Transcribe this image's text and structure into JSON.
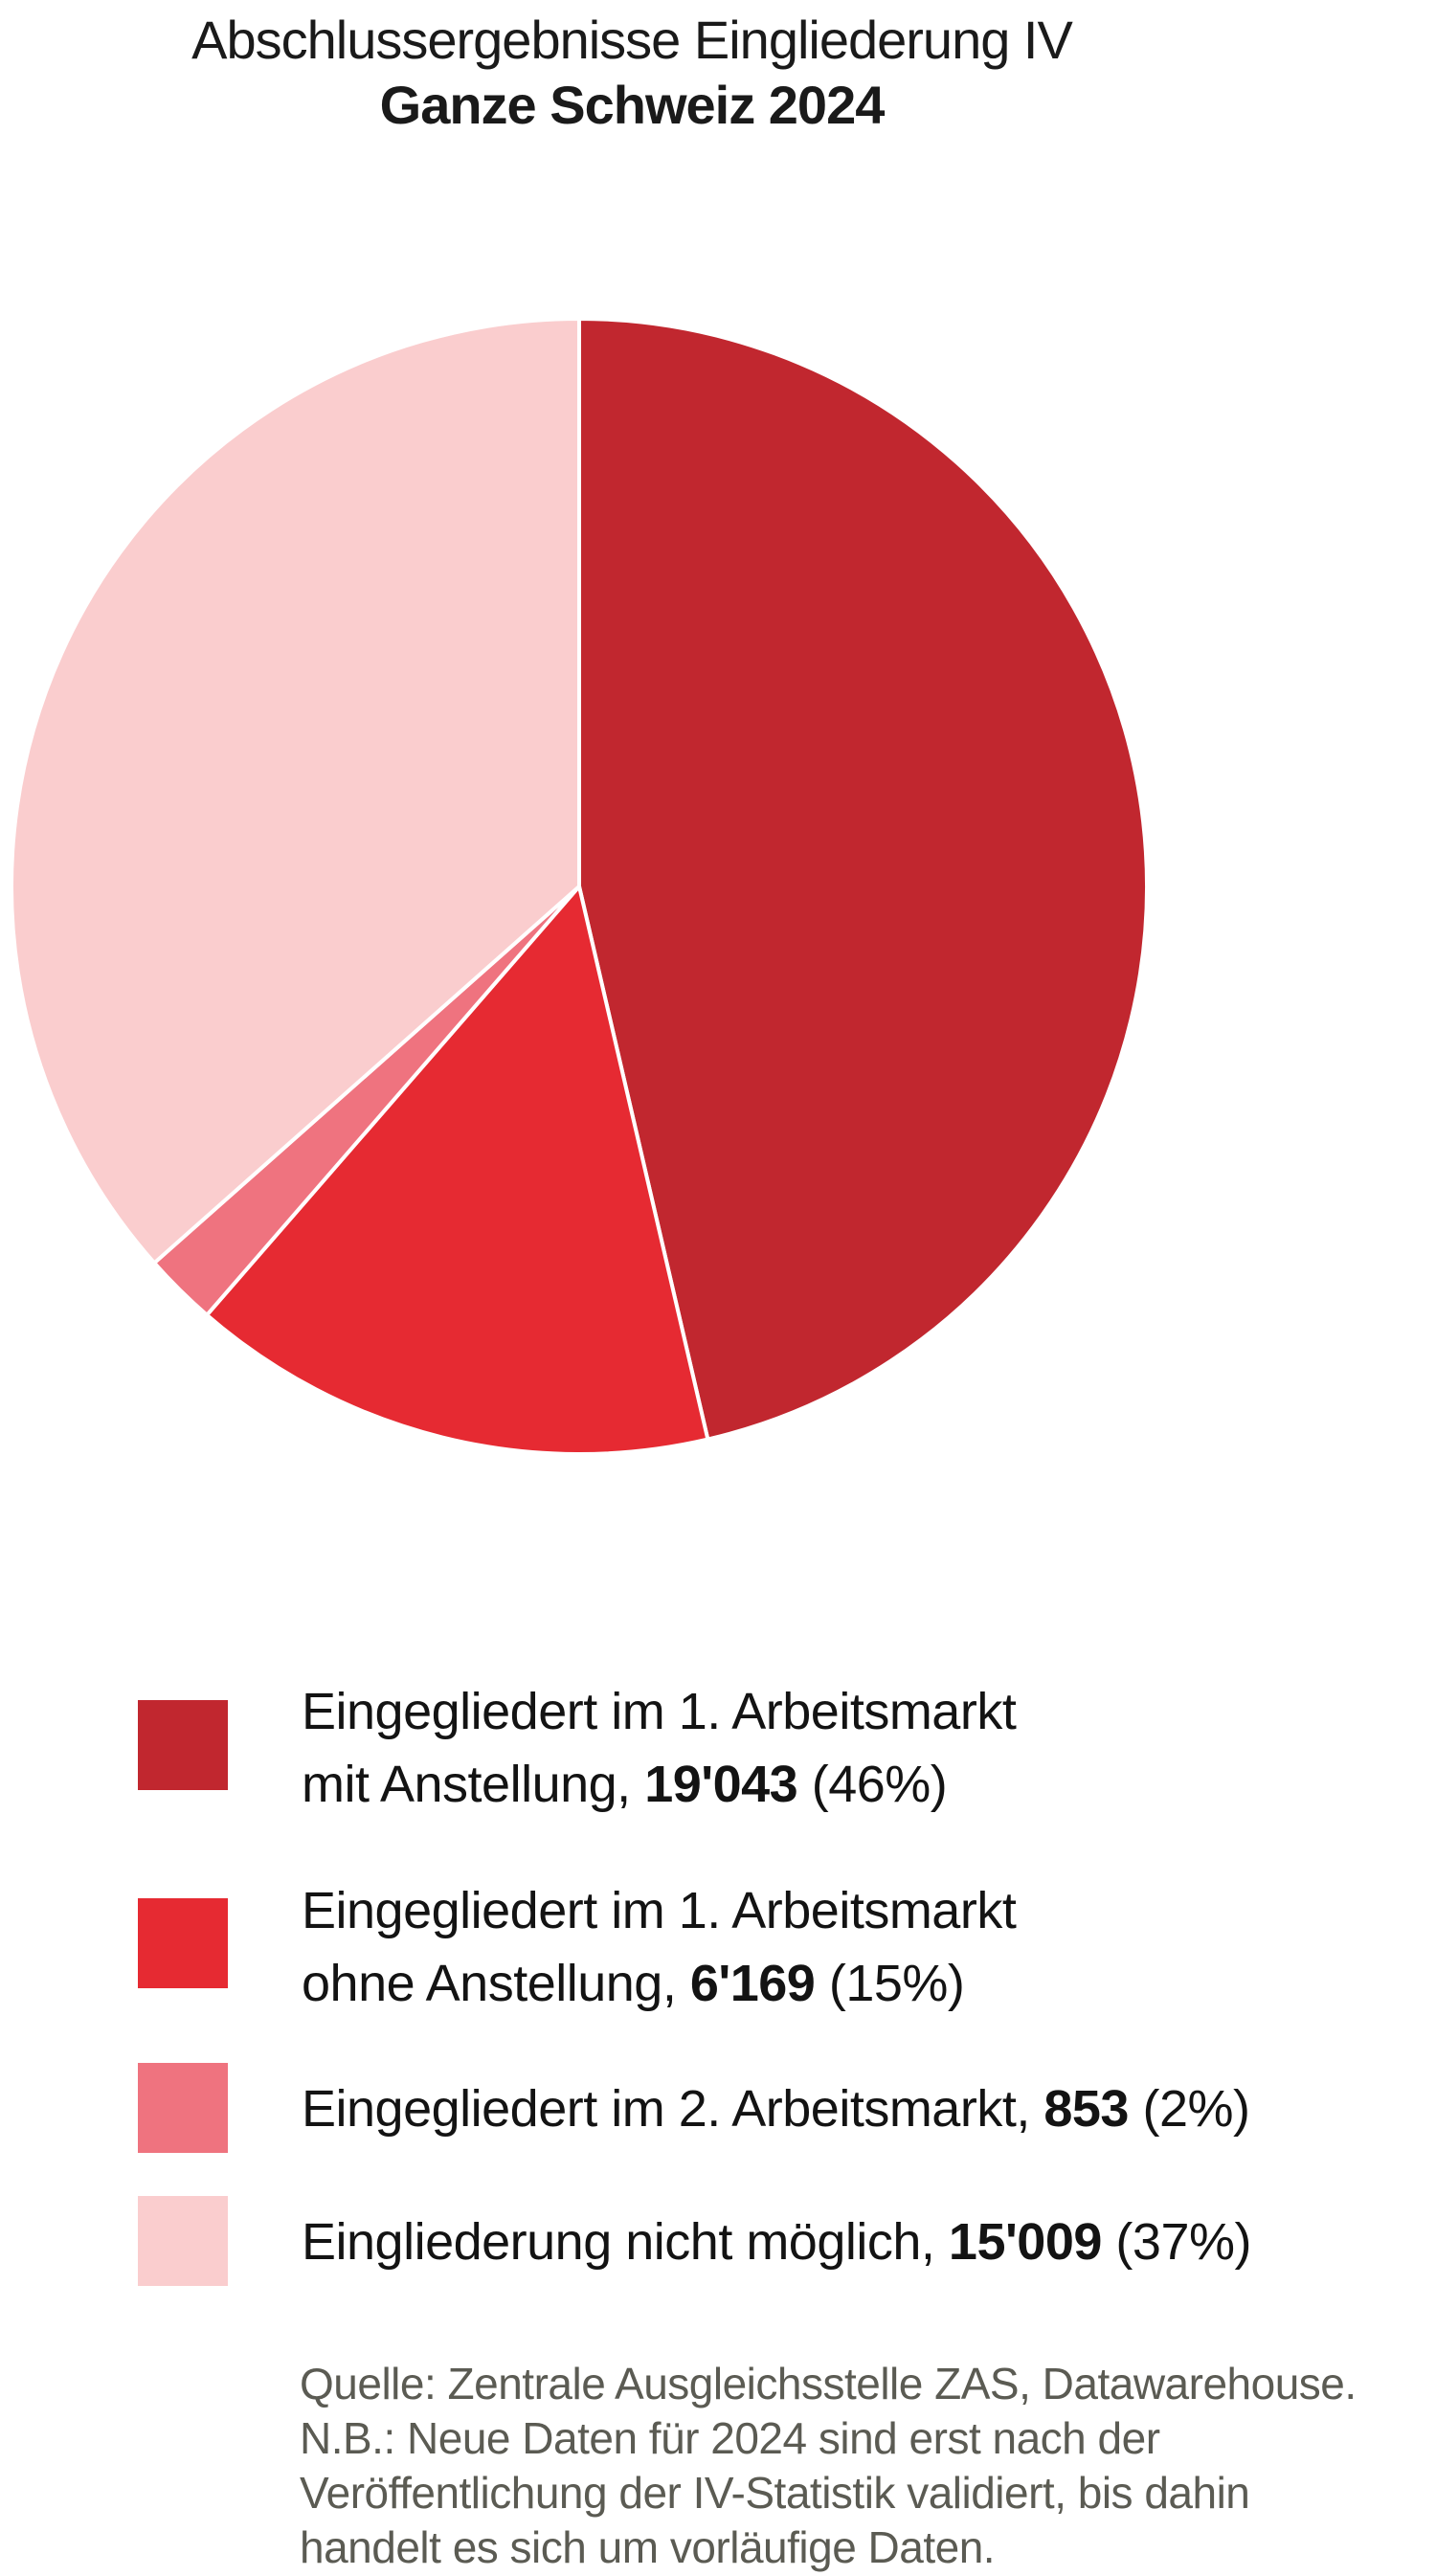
{
  "title": {
    "line1": "Abschlussergebnisse Eingliederung IV",
    "line2": "Ganze Schweiz 2024"
  },
  "chart_data": {
    "type": "pie",
    "title": "Abschlussergebnisse Eingliederung IV",
    "subtitle": "Ganze Schweiz 2024",
    "start_angle": "12 o'clock, clockwise",
    "slice_border_color": "#ffffff",
    "legend_position": "bottom-left",
    "slices": [
      {
        "label": "Eingegliedert im 1. Arbeitsmarkt mit Anstellung",
        "value": 19043,
        "value_label": "19'043",
        "percent": 46,
        "color": "#c1272f"
      },
      {
        "label": "Eingegliedert im 1. Arbeitsmarkt ohne Anstellung",
        "value": 6169,
        "value_label": "6'169",
        "percent": 15,
        "color": "#e62a32"
      },
      {
        "label": "Eingegliedert im 2. Arbeitsmarkt",
        "value": 853,
        "value_label": "853",
        "percent": 2,
        "color": "#ef737f"
      },
      {
        "label": "Eingliederung nicht möglich",
        "value": 15009,
        "value_label": "15'009",
        "percent": 37,
        "color": "#facdce"
      }
    ]
  },
  "legend": {
    "items": [
      {
        "line1": "Eingegliedert im 1. Arbeitsmarkt",
        "line2_prefix": "mit Anstellung, ",
        "value": "19'043",
        "suffix": " (46%)"
      },
      {
        "line1": "Eingegliedert im 1. Arbeitsmarkt",
        "line2_prefix": "ohne Anstellung, ",
        "value": "6'169",
        "suffix": " (15%)"
      },
      {
        "line1_prefix": "Eingegliedert im 2. Arbeitsmarkt, ",
        "value": "853",
        "suffix": " (2%)"
      },
      {
        "line1_prefix": "Eingliederung nicht möglich, ",
        "value": "15'009",
        "suffix": " (37%)"
      }
    ]
  },
  "footer": {
    "lines": [
      "Quelle: Zentrale Ausgleichsstelle ZAS, Datawarehouse.",
      "N.B.: Neue Daten für 2024 sind erst nach der",
      "Veröffentlichung der IV-Statistik validiert, bis dahin",
      "handelt es sich um vorläufige Daten."
    ]
  },
  "colors": {
    "title_text": "#1a1a1a",
    "legend_text": "#131313",
    "footer_text": "#5b5b53",
    "background": "#ffffff"
  }
}
